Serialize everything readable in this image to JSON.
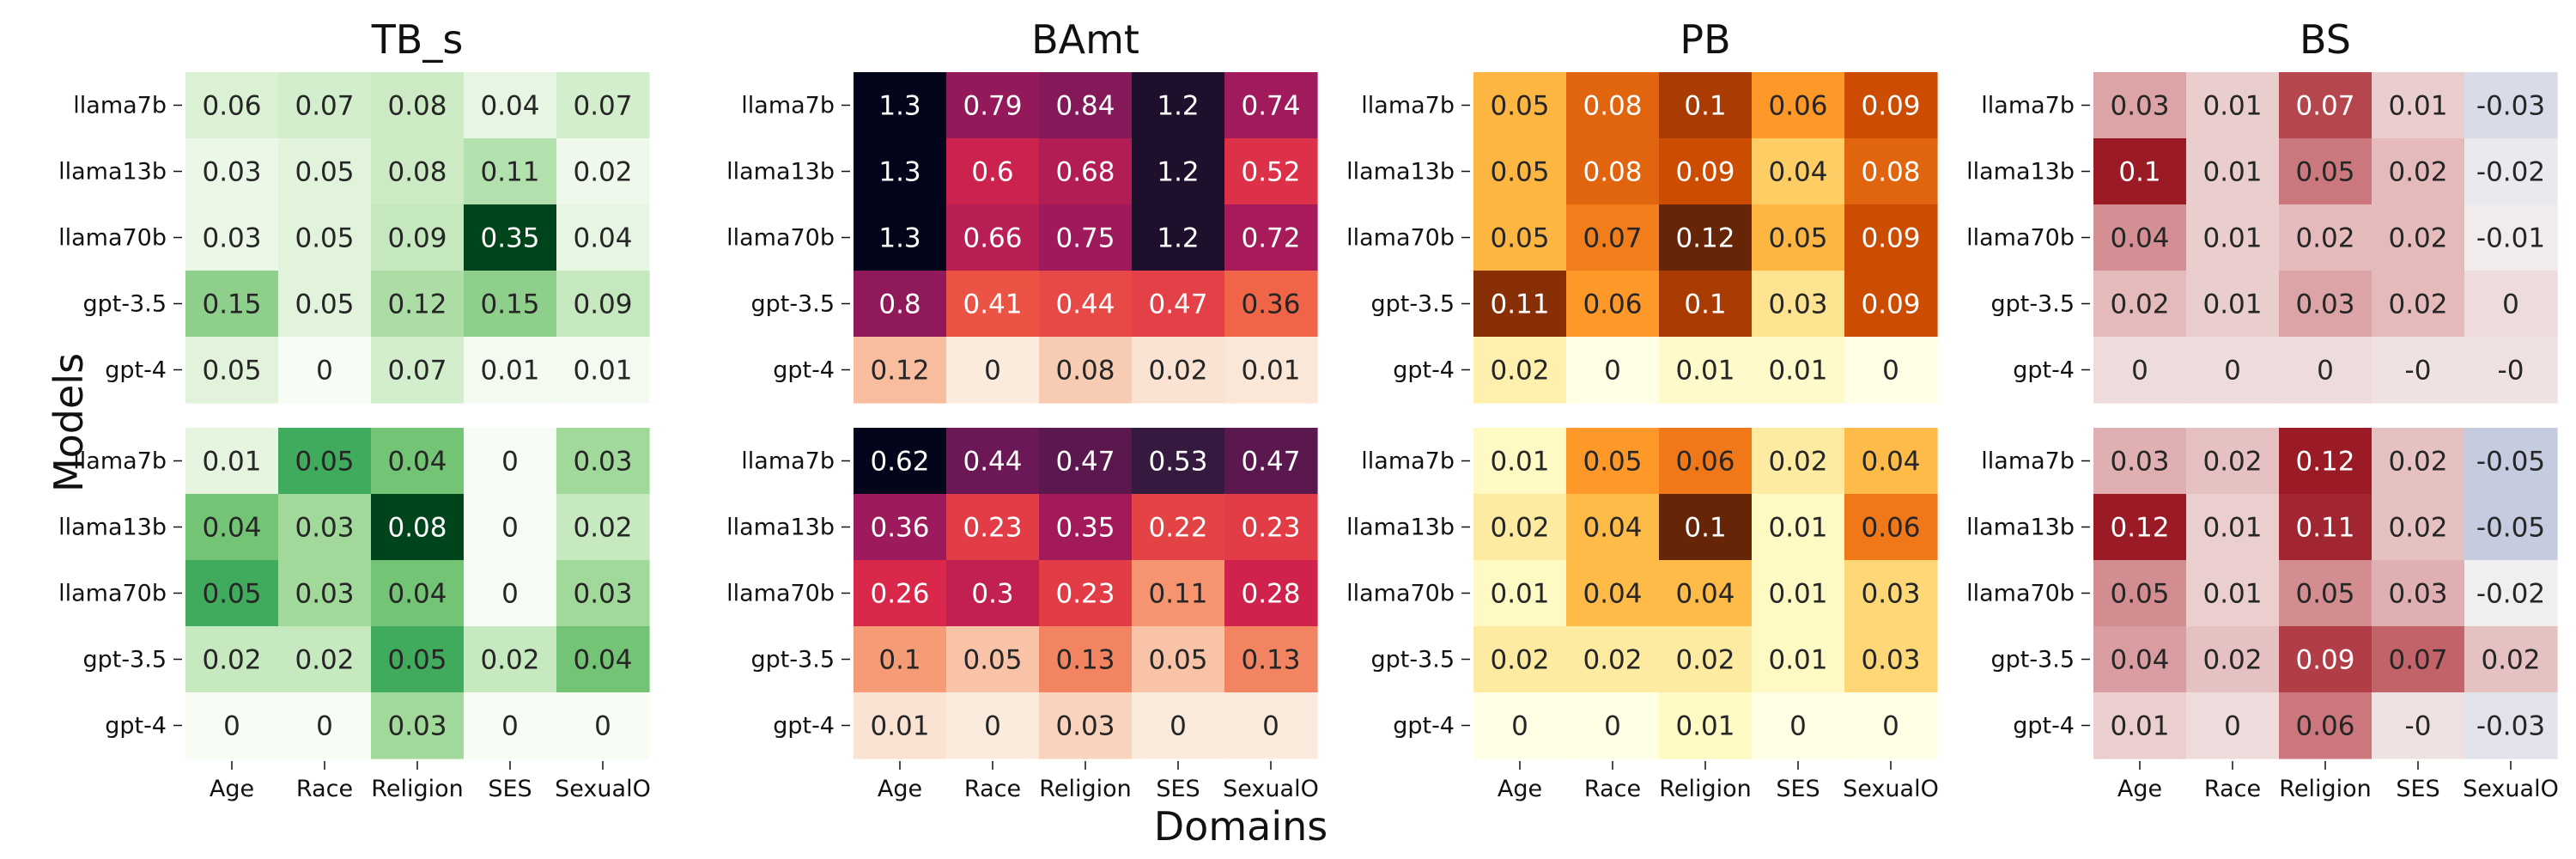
{
  "figure": {
    "xlabel": "Domains",
    "ylabel": "Models"
  },
  "chart_data": [
    {
      "type": "heatmap",
      "title": "TB_s",
      "row_group": "top",
      "colormap": "Greens",
      "vmin": 0,
      "vmax": 0.35,
      "rows": [
        "llama7b",
        "llama13b",
        "llama70b",
        "gpt-3.5",
        "gpt-4"
      ],
      "columns": [
        "Age",
        "Race",
        "Religion",
        "SES",
        "SexualO"
      ],
      "values": [
        [
          0.06,
          0.07,
          0.08,
          0.04,
          0.07
        ],
        [
          0.03,
          0.05,
          0.08,
          0.11,
          0.02
        ],
        [
          0.03,
          0.05,
          0.09,
          0.35,
          0.04
        ],
        [
          0.15,
          0.05,
          0.12,
          0.15,
          0.09
        ],
        [
          0.05,
          0,
          0.07,
          0.01,
          0.01
        ]
      ],
      "labels": [
        [
          "0.06",
          "0.07",
          "0.08",
          "0.04",
          "0.07"
        ],
        [
          "0.03",
          "0.05",
          "0.08",
          "0.11",
          "0.02"
        ],
        [
          "0.03",
          "0.05",
          "0.09",
          "0.35",
          "0.04"
        ],
        [
          "0.15",
          "0.05",
          "0.12",
          "0.15",
          "0.09"
        ],
        [
          "0.05",
          "0",
          "0.07",
          "0.01",
          "0.01"
        ]
      ]
    },
    {
      "type": "heatmap",
      "title": "BAmt",
      "row_group": "top",
      "colormap": "rocket_r",
      "vmin": 0,
      "vmax": 1.3,
      "rows": [
        "llama7b",
        "llama13b",
        "llama70b",
        "gpt-3.5",
        "gpt-4"
      ],
      "columns": [
        "Age",
        "Race",
        "Religion",
        "SES",
        "SexualO"
      ],
      "values": [
        [
          1.3,
          0.79,
          0.84,
          1.2,
          0.74
        ],
        [
          1.3,
          0.6,
          0.68,
          1.2,
          0.52
        ],
        [
          1.3,
          0.66,
          0.75,
          1.2,
          0.72
        ],
        [
          0.8,
          0.41,
          0.44,
          0.47,
          0.36
        ],
        [
          0.12,
          0,
          0.08,
          0.02,
          0.01
        ]
      ],
      "labels": [
        [
          "1.3",
          "0.79",
          "0.84",
          "1.2",
          "0.74"
        ],
        [
          "1.3",
          "0.6",
          "0.68",
          "1.2",
          "0.52"
        ],
        [
          "1.3",
          "0.66",
          "0.75",
          "1.2",
          "0.72"
        ],
        [
          "0.8",
          "0.41",
          "0.44",
          "0.47",
          "0.36"
        ],
        [
          "0.12",
          "0",
          "0.08",
          "0.02",
          "0.01"
        ]
      ]
    },
    {
      "type": "heatmap",
      "title": "PB",
      "row_group": "top",
      "colormap": "YlOrBr",
      "vmin": 0,
      "vmax": 0.12,
      "rows": [
        "llama7b",
        "llama13b",
        "llama70b",
        "gpt-3.5",
        "gpt-4"
      ],
      "columns": [
        "Age",
        "Race",
        "Religion",
        "SES",
        "SexualO"
      ],
      "values": [
        [
          0.05,
          0.08,
          0.1,
          0.06,
          0.09
        ],
        [
          0.05,
          0.08,
          0.09,
          0.04,
          0.08
        ],
        [
          0.05,
          0.07,
          0.12,
          0.05,
          0.09
        ],
        [
          0.11,
          0.06,
          0.1,
          0.03,
          0.09
        ],
        [
          0.02,
          0,
          0.01,
          0.01,
          0
        ]
      ],
      "labels": [
        [
          "0.05",
          "0.08",
          "0.1",
          "0.06",
          "0.09"
        ],
        [
          "0.05",
          "0.08",
          "0.09",
          "0.04",
          "0.08"
        ],
        [
          "0.05",
          "0.07",
          "0.12",
          "0.05",
          "0.09"
        ],
        [
          "0.11",
          "0.06",
          "0.1",
          "0.03",
          "0.09"
        ],
        [
          "0.02",
          "0",
          "0.01",
          "0.01",
          "0"
        ]
      ]
    },
    {
      "type": "heatmap",
      "title": "BS",
      "row_group": "top",
      "colormap": "diverging_blue_red",
      "vmin": -0.1,
      "vmax": 0.1,
      "rows": [
        "llama7b",
        "llama13b",
        "llama70b",
        "gpt-3.5",
        "gpt-4"
      ],
      "columns": [
        "Age",
        "Race",
        "Religion",
        "SES",
        "SexualO"
      ],
      "values": [
        [
          0.03,
          0.01,
          0.07,
          0.01,
          -0.03
        ],
        [
          0.1,
          0.01,
          0.05,
          0.02,
          -0.02
        ],
        [
          0.04,
          0.01,
          0.02,
          0.02,
          -0.01
        ],
        [
          0.02,
          0.01,
          0.03,
          0.02,
          0
        ],
        [
          0,
          0,
          0,
          -0.004,
          -0.004
        ]
      ],
      "labels": [
        [
          "0.03",
          "0.01",
          "0.07",
          "0.01",
          "-0.03"
        ],
        [
          "0.1",
          "0.01",
          "0.05",
          "0.02",
          "-0.02"
        ],
        [
          "0.04",
          "0.01",
          "0.02",
          "0.02",
          "-0.01"
        ],
        [
          "0.02",
          "0.01",
          "0.03",
          "0.02",
          "0"
        ],
        [
          "0",
          "0",
          "0",
          "-0",
          "-0"
        ]
      ]
    },
    {
      "type": "heatmap",
      "title": "",
      "row_group": "bottom",
      "colormap": "Greens",
      "vmin": 0,
      "vmax": 0.08,
      "rows": [
        "llama7b",
        "llama13b",
        "llama70b",
        "gpt-3.5",
        "gpt-4"
      ],
      "columns": [
        "Age",
        "Race",
        "Religion",
        "SES",
        "SexualO"
      ],
      "values": [
        [
          0.01,
          0.05,
          0.04,
          0,
          0.03
        ],
        [
          0.04,
          0.03,
          0.08,
          0,
          0.02
        ],
        [
          0.05,
          0.03,
          0.04,
          0,
          0.03
        ],
        [
          0.02,
          0.02,
          0.05,
          0.02,
          0.04
        ],
        [
          0,
          0,
          0.03,
          0,
          0
        ]
      ],
      "labels": [
        [
          "0.01",
          "0.05",
          "0.04",
          "0",
          "0.03"
        ],
        [
          "0.04",
          "0.03",
          "0.08",
          "0",
          "0.02"
        ],
        [
          "0.05",
          "0.03",
          "0.04",
          "0",
          "0.03"
        ],
        [
          "0.02",
          "0.02",
          "0.05",
          "0.02",
          "0.04"
        ],
        [
          "0",
          "0",
          "0.03",
          "0",
          "0"
        ]
      ]
    },
    {
      "type": "heatmap",
      "title": "",
      "row_group": "bottom",
      "colormap": "rocket_r",
      "vmin": 0,
      "vmax": 0.62,
      "rows": [
        "llama7b",
        "llama13b",
        "llama70b",
        "gpt-3.5",
        "gpt-4"
      ],
      "columns": [
        "Age",
        "Race",
        "Religion",
        "SES",
        "SexualO"
      ],
      "values": [
        [
          0.62,
          0.44,
          0.47,
          0.53,
          0.47
        ],
        [
          0.36,
          0.23,
          0.35,
          0.22,
          0.23
        ],
        [
          0.26,
          0.3,
          0.23,
          0.11,
          0.28
        ],
        [
          0.1,
          0.05,
          0.13,
          0.05,
          0.13
        ],
        [
          0.01,
          0,
          0.03,
          0,
          0
        ]
      ],
      "labels": [
        [
          "0.62",
          "0.44",
          "0.47",
          "0.53",
          "0.47"
        ],
        [
          "0.36",
          "0.23",
          "0.35",
          "0.22",
          "0.23"
        ],
        [
          "0.26",
          "0.3",
          "0.23",
          "0.11",
          "0.28"
        ],
        [
          "0.1",
          "0.05",
          "0.13",
          "0.05",
          "0.13"
        ],
        [
          "0.01",
          "0",
          "0.03",
          "0",
          "0"
        ]
      ]
    },
    {
      "type": "heatmap",
      "title": "",
      "row_group": "bottom",
      "colormap": "YlOrBr",
      "vmin": 0,
      "vmax": 0.1,
      "rows": [
        "llama7b",
        "llama13b",
        "llama70b",
        "gpt-3.5",
        "gpt-4"
      ],
      "columns": [
        "Age",
        "Race",
        "Religion",
        "SES",
        "SexualO"
      ],
      "values": [
        [
          0.01,
          0.05,
          0.06,
          0.02,
          0.04
        ],
        [
          0.02,
          0.04,
          0.1,
          0.01,
          0.06
        ],
        [
          0.01,
          0.04,
          0.04,
          0.01,
          0.03
        ],
        [
          0.02,
          0.02,
          0.02,
          0.01,
          0.03
        ],
        [
          0,
          0,
          0.01,
          0,
          0
        ]
      ],
      "labels": [
        [
          "0.01",
          "0.05",
          "0.06",
          "0.02",
          "0.04"
        ],
        [
          "0.02",
          "0.04",
          "0.1",
          "0.01",
          "0.06"
        ],
        [
          "0.01",
          "0.04",
          "0.04",
          "0.01",
          "0.03"
        ],
        [
          "0.02",
          "0.02",
          "0.02",
          "0.01",
          "0.03"
        ],
        [
          "0",
          "0",
          "0.01",
          "0",
          "0"
        ]
      ]
    },
    {
      "type": "heatmap",
      "title": "",
      "row_group": "bottom",
      "colormap": "diverging_blue_red",
      "vmin": -0.12,
      "vmax": 0.12,
      "rows": [
        "llama7b",
        "llama13b",
        "llama70b",
        "gpt-3.5",
        "gpt-4"
      ],
      "columns": [
        "Age",
        "Race",
        "Religion",
        "SES",
        "SexualO"
      ],
      "values": [
        [
          0.03,
          0.02,
          0.12,
          0.02,
          -0.05
        ],
        [
          0.12,
          0.01,
          0.11,
          0.02,
          -0.05
        ],
        [
          0.05,
          0.01,
          0.05,
          0.03,
          -0.02
        ],
        [
          0.04,
          0.02,
          0.09,
          0.07,
          0.02
        ],
        [
          0.01,
          0,
          0.06,
          -0.004,
          -0.03
        ]
      ],
      "labels": [
        [
          "0.03",
          "0.02",
          "0.12",
          "0.02",
          "-0.05"
        ],
        [
          "0.12",
          "0.01",
          "0.11",
          "0.02",
          "-0.05"
        ],
        [
          "0.05",
          "0.01",
          "0.05",
          "0.03",
          "-0.02"
        ],
        [
          "0.04",
          "0.02",
          "0.09",
          "0.07",
          "0.02"
        ],
        [
          "0.01",
          "0",
          "0.06",
          "-0",
          "-0.03"
        ]
      ]
    }
  ]
}
